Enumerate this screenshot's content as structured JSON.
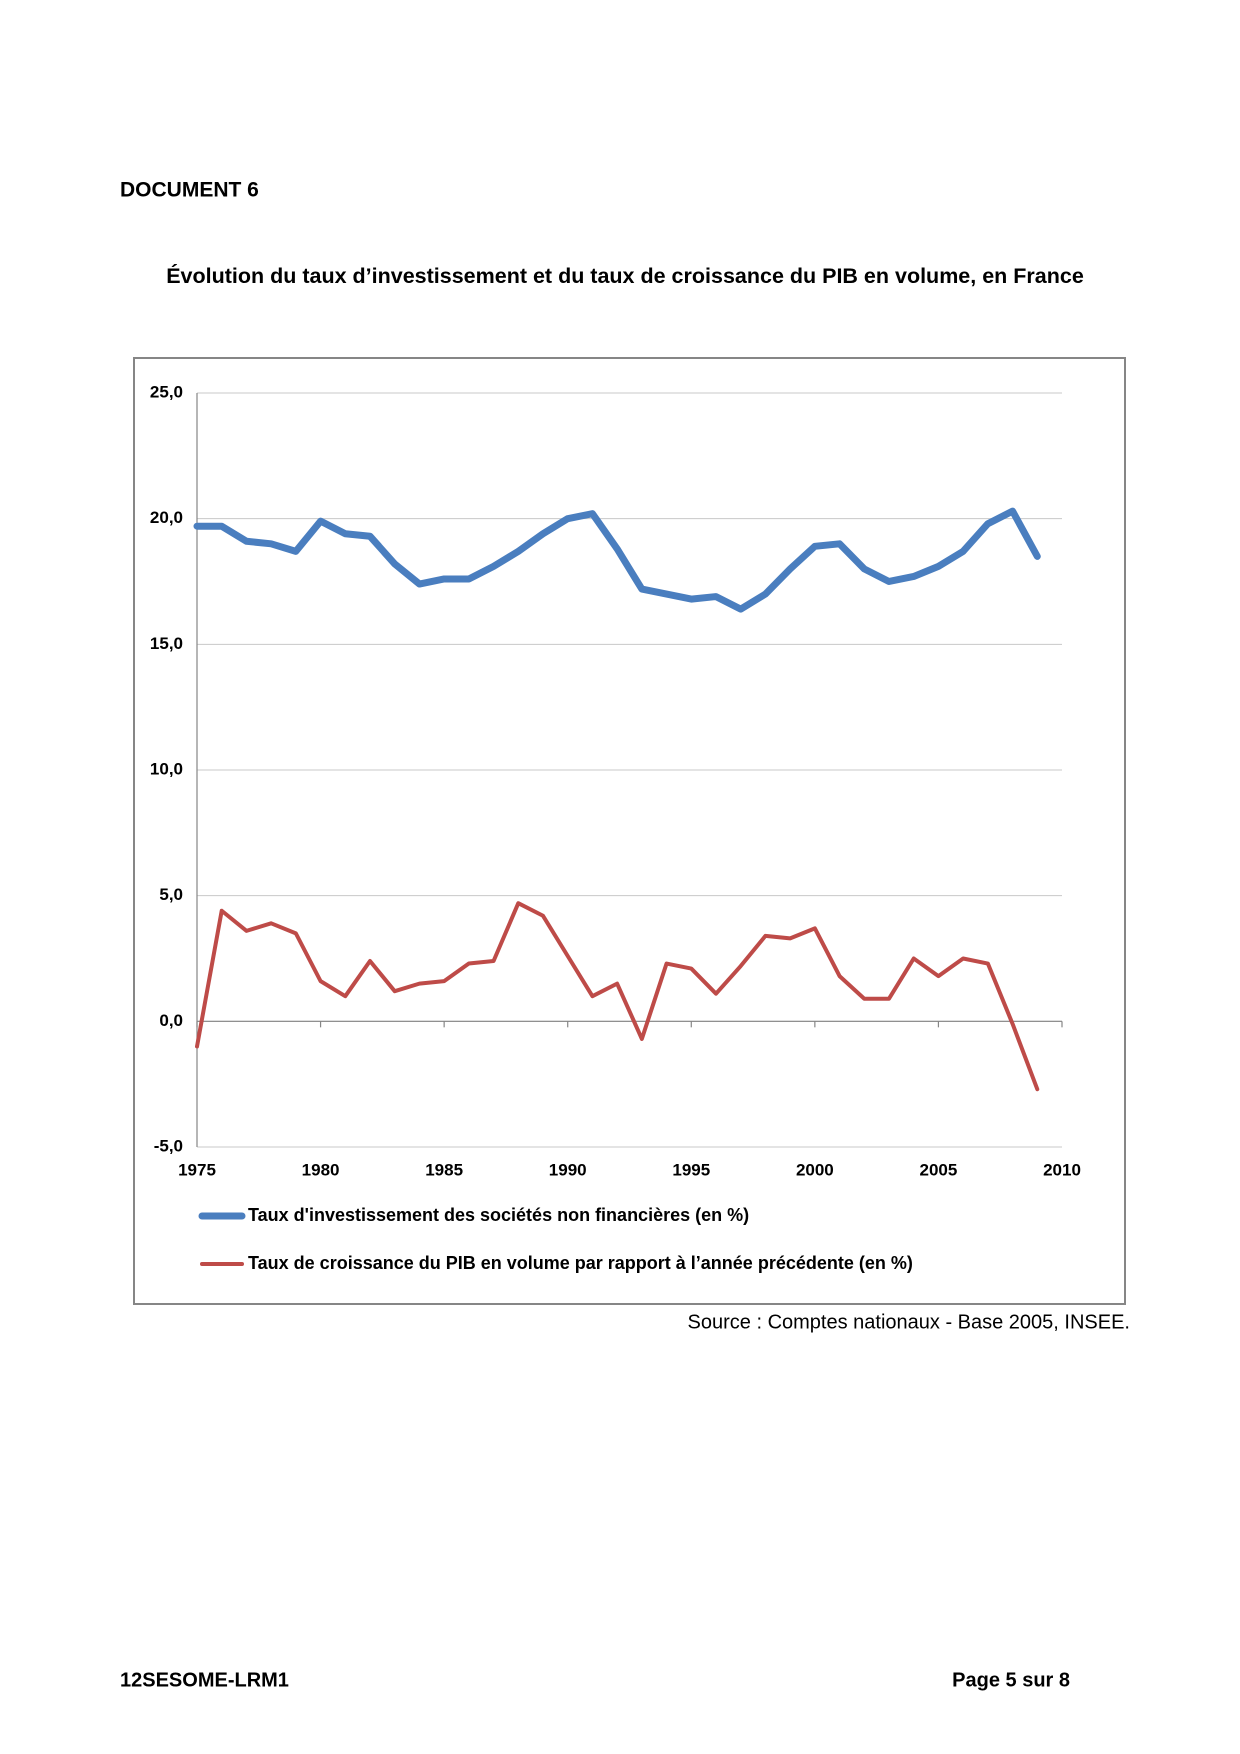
{
  "header": {
    "title": "DOCUMENT 6"
  },
  "chart_data": {
    "type": "line",
    "title": "Évolution du taux d’investissement et du taux de croissance du PIB en volume, en France",
    "x": [
      1975,
      1976,
      1977,
      1978,
      1979,
      1980,
      1981,
      1982,
      1983,
      1984,
      1985,
      1986,
      1987,
      1988,
      1989,
      1990,
      1991,
      1992,
      1993,
      1994,
      1995,
      1996,
      1997,
      1998,
      1999,
      2000,
      2001,
      2002,
      2003,
      2004,
      2005,
      2006,
      2007,
      2008,
      2009
    ],
    "series": [
      {
        "name": "Taux d'investissement des sociétés non financières (en %)",
        "color": "#4a7ebf",
        "values": [
          19.7,
          19.7,
          19.1,
          19.0,
          18.7,
          19.9,
          19.4,
          19.3,
          18.2,
          17.4,
          17.6,
          17.6,
          18.1,
          18.7,
          19.4,
          20.0,
          20.2,
          18.8,
          17.2,
          17.0,
          16.8,
          16.9,
          16.4,
          17.0,
          18.0,
          18.9,
          19.0,
          18.0,
          17.5,
          17.7,
          18.1,
          18.7,
          19.8,
          20.3,
          18.5
        ]
      },
      {
        "name": "Taux de croissance du PIB en volume par rapport à l’année précédente (en %)",
        "color": "#be4b48",
        "values": [
          -1.0,
          4.4,
          3.6,
          3.9,
          3.5,
          1.6,
          1.0,
          2.4,
          1.2,
          1.5,
          1.6,
          2.3,
          2.4,
          4.7,
          4.2,
          2.6,
          1.0,
          1.5,
          -0.7,
          2.3,
          2.1,
          1.1,
          2.2,
          3.4,
          3.3,
          3.7,
          1.8,
          0.9,
          0.9,
          2.5,
          1.8,
          2.5,
          2.3,
          -0.1,
          -2.7
        ]
      }
    ],
    "xlim": [
      1975,
      2010
    ],
    "xticks": [
      1975,
      1980,
      1985,
      1990,
      1995,
      2000,
      2005,
      2010
    ],
    "ylim": [
      -5,
      25
    ],
    "yticks": [
      {
        "value": -5,
        "label": "-5,0"
      },
      {
        "value": 0,
        "label": "0,0"
      },
      {
        "value": 5,
        "label": "5,0"
      },
      {
        "value": 10,
        "label": "10,0"
      },
      {
        "value": 15,
        "label": "15,0"
      },
      {
        "value": 20,
        "label": "20,0"
      },
      {
        "value": 25,
        "label": "25,0"
      }
    ],
    "grid": true,
    "legend": "bottom"
  },
  "source": "Source : Comptes nationaux - Base 2005, INSEE.",
  "footer": {
    "left": "12SESOME-LRM1",
    "right": "Page 5 sur 8"
  }
}
